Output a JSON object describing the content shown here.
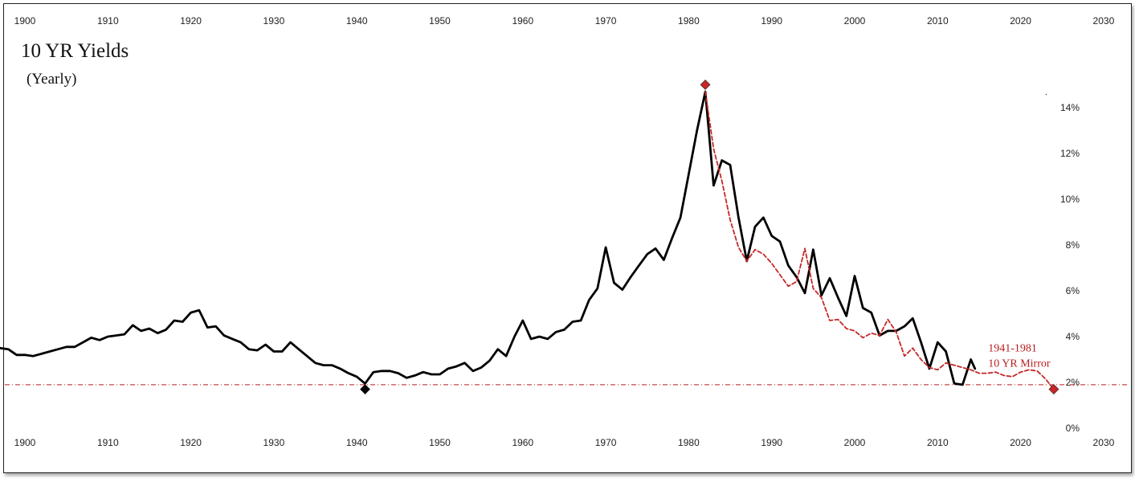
{
  "chart_data": {
    "type": "line",
    "title": "10 YR Yields",
    "subtitle": "(Yearly)",
    "xlabel": "",
    "ylabel": "",
    "xlim": [
      1897,
      2030
    ],
    "ylim": [
      0,
      15.5
    ],
    "x_ticks": [
      "1900",
      "1910",
      "1920",
      "1930",
      "1940",
      "1950",
      "1960",
      "1970",
      "1980",
      "1990",
      "2000",
      "2010",
      "2020",
      "2030"
    ],
    "y_ticks": [
      "0%",
      "2%",
      "4%",
      "6%",
      "8%",
      "10%",
      "12%",
      "14%"
    ],
    "grid": false,
    "reference_line": {
      "y": 1.9,
      "color": "#b71c1c",
      "style": "dash-dot"
    },
    "series": [
      {
        "color": "#000000",
        "style": "solid",
        "points": [
          [
            1897,
            3.5
          ],
          [
            1898,
            3.45
          ],
          [
            1899,
            3.2
          ],
          [
            1900,
            3.2
          ],
          [
            1901,
            3.15
          ],
          [
            1902,
            3.25
          ],
          [
            1903,
            3.35
          ],
          [
            1904,
            3.45
          ],
          [
            1905,
            3.55
          ],
          [
            1906,
            3.55
          ],
          [
            1907,
            3.75
          ],
          [
            1908,
            3.95
          ],
          [
            1909,
            3.85
          ],
          [
            1910,
            4.0
          ],
          [
            1911,
            4.05
          ],
          [
            1912,
            4.1
          ],
          [
            1913,
            4.5
          ],
          [
            1914,
            4.25
          ],
          [
            1915,
            4.35
          ],
          [
            1916,
            4.15
          ],
          [
            1917,
            4.3
          ],
          [
            1918,
            4.7
          ],
          [
            1919,
            4.65
          ],
          [
            1920,
            5.05
          ],
          [
            1921,
            5.15
          ],
          [
            1922,
            4.4
          ],
          [
            1923,
            4.45
          ],
          [
            1924,
            4.05
          ],
          [
            1925,
            3.9
          ],
          [
            1926,
            3.75
          ],
          [
            1927,
            3.45
          ],
          [
            1928,
            3.4
          ],
          [
            1929,
            3.65
          ],
          [
            1930,
            3.35
          ],
          [
            1931,
            3.35
          ],
          [
            1932,
            3.75
          ],
          [
            1933,
            3.45
          ],
          [
            1934,
            3.15
          ],
          [
            1935,
            2.85
          ],
          [
            1936,
            2.75
          ],
          [
            1937,
            2.75
          ],
          [
            1938,
            2.6
          ],
          [
            1939,
            2.4
          ],
          [
            1940,
            2.25
          ],
          [
            1941,
            1.95
          ],
          [
            1942,
            2.45
          ],
          [
            1943,
            2.5
          ],
          [
            1944,
            2.5
          ],
          [
            1945,
            2.4
          ],
          [
            1946,
            2.2
          ],
          [
            1947,
            2.3
          ],
          [
            1948,
            2.45
          ],
          [
            1949,
            2.35
          ],
          [
            1950,
            2.35
          ],
          [
            1951,
            2.6
          ],
          [
            1952,
            2.7
          ],
          [
            1953,
            2.85
          ],
          [
            1954,
            2.5
          ],
          [
            1955,
            2.65
          ],
          [
            1956,
            2.95
          ],
          [
            1957,
            3.45
          ],
          [
            1958,
            3.15
          ],
          [
            1959,
            4.0
          ],
          [
            1960,
            4.7
          ],
          [
            1961,
            3.9
          ],
          [
            1962,
            4.0
          ],
          [
            1963,
            3.9
          ],
          [
            1964,
            4.2
          ],
          [
            1965,
            4.3
          ],
          [
            1966,
            4.65
          ],
          [
            1967,
            4.7
          ],
          [
            1968,
            5.6
          ],
          [
            1969,
            6.1
          ],
          [
            1970,
            7.9
          ],
          [
            1971,
            6.35
          ],
          [
            1972,
            6.05
          ],
          [
            1973,
            6.6
          ],
          [
            1974,
            7.1
          ],
          [
            1975,
            7.6
          ],
          [
            1976,
            7.85
          ],
          [
            1977,
            7.35
          ],
          [
            1978,
            8.3
          ],
          [
            1979,
            9.2
          ],
          [
            1980,
            11.1
          ],
          [
            1981,
            13.0
          ],
          [
            1982,
            14.7
          ],
          [
            1983,
            10.6
          ],
          [
            1984,
            11.7
          ],
          [
            1985,
            11.5
          ],
          [
            1986,
            9.2
          ],
          [
            1987,
            7.3
          ],
          [
            1988,
            8.8
          ],
          [
            1989,
            9.2
          ],
          [
            1990,
            8.4
          ],
          [
            1991,
            8.15
          ],
          [
            1992,
            7.1
          ],
          [
            1993,
            6.6
          ],
          [
            1994,
            5.9
          ],
          [
            1995,
            7.8
          ],
          [
            1996,
            5.8
          ],
          [
            1997,
            6.55
          ],
          [
            1998,
            5.7
          ],
          [
            1999,
            4.9
          ],
          [
            2000,
            6.65
          ],
          [
            2001,
            5.25
          ],
          [
            2002,
            5.05
          ],
          [
            2003,
            4.05
          ],
          [
            2004,
            4.25
          ],
          [
            2005,
            4.25
          ],
          [
            2006,
            4.45
          ],
          [
            2007,
            4.8
          ],
          [
            2008,
            3.75
          ],
          [
            2009,
            2.6
          ],
          [
            2010,
            3.75
          ],
          [
            2011,
            3.35
          ],
          [
            2012,
            1.95
          ],
          [
            2013,
            1.9
          ],
          [
            2014,
            3.0
          ],
          [
            2014.5,
            2.6
          ]
        ]
      },
      {
        "color": "#c62828",
        "style": "dashed",
        "points": [
          [
            1982,
            14.7
          ],
          [
            1983,
            12.2
          ],
          [
            1984,
            10.8
          ],
          [
            1985,
            9.1
          ],
          [
            1986,
            7.9
          ],
          [
            1987,
            7.3
          ],
          [
            1988,
            7.8
          ],
          [
            1989,
            7.6
          ],
          [
            1990,
            7.2
          ],
          [
            1991,
            6.7
          ],
          [
            1992,
            6.2
          ],
          [
            1993,
            6.4
          ],
          [
            1994,
            7.85
          ],
          [
            1995,
            6.1
          ],
          [
            1996,
            5.7
          ],
          [
            1997,
            4.7
          ],
          [
            1998,
            4.75
          ],
          [
            1999,
            4.35
          ],
          [
            2000,
            4.25
          ],
          [
            2001,
            3.95
          ],
          [
            2002,
            4.15
          ],
          [
            2003,
            4.05
          ],
          [
            2004,
            4.75
          ],
          [
            2005,
            4.2
          ],
          [
            2006,
            3.15
          ],
          [
            2007,
            3.5
          ],
          [
            2008,
            3.0
          ],
          [
            2009,
            2.65
          ],
          [
            2010,
            2.55
          ],
          [
            2011,
            2.85
          ],
          [
            2012,
            2.75
          ],
          [
            2013,
            2.65
          ],
          [
            2014,
            2.55
          ],
          [
            2015,
            2.4
          ],
          [
            2016,
            2.4
          ],
          [
            2017,
            2.45
          ],
          [
            2018,
            2.3
          ],
          [
            2019,
            2.25
          ],
          [
            2020,
            2.45
          ],
          [
            2021,
            2.55
          ],
          [
            2022,
            2.5
          ],
          [
            2023,
            2.15
          ],
          [
            2024,
            1.7
          ]
        ]
      }
    ],
    "markers": [
      {
        "x": 1941,
        "y": 1.7,
        "color": "#000000"
      },
      {
        "x": 1982,
        "y": 15.0,
        "color": "#c62828"
      },
      {
        "x": 2024,
        "y": 1.7,
        "color": "#c62828"
      }
    ],
    "annotation": {
      "lines": [
        "1941-1981",
        "10 YR Mirror"
      ],
      "x": 2019,
      "y": 3.45,
      "color": "#b71c1c"
    }
  }
}
